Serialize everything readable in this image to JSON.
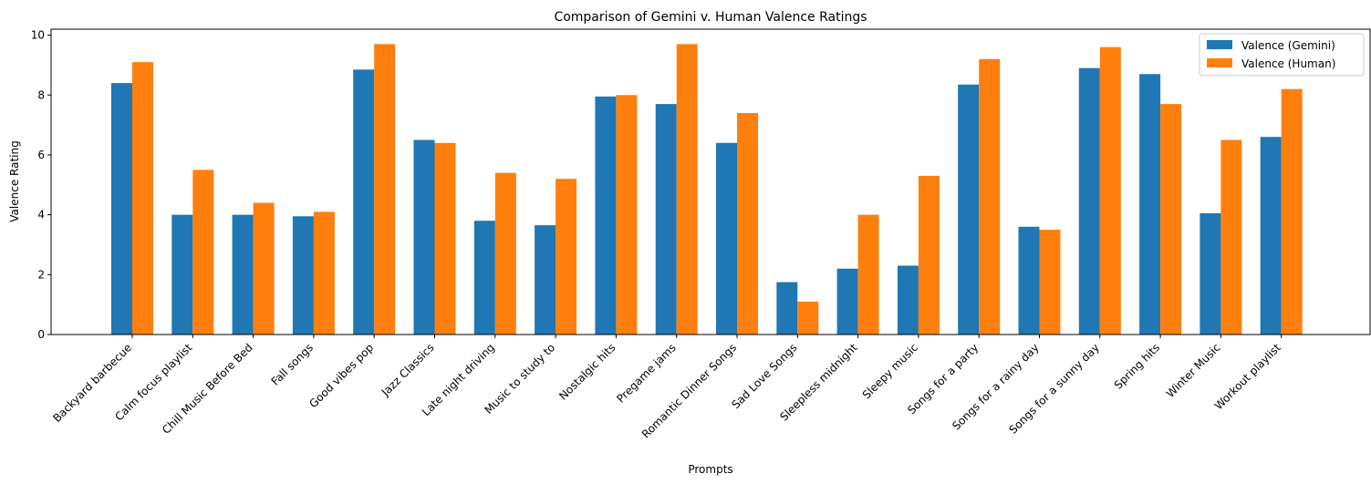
{
  "chart_data": {
    "type": "bar",
    "title": "Comparison of Gemini v. Human Valence Ratings",
    "xlabel": "Prompts",
    "ylabel": "Valence Rating",
    "ylim": [
      0,
      10.2
    ],
    "yticks": [
      0,
      2,
      4,
      6,
      8,
      10
    ],
    "grid": false,
    "legend_position": "top-right",
    "categories": [
      "Backyard barbecue",
      "Calm focus playlist",
      "Chill Music Before Bed",
      "Fall songs",
      "Good vibes pop",
      "Jazz Classics",
      "Late night driving",
      "Music to study to",
      "Nostalgic hits",
      "Pregame jams",
      "Romantic Dinner Songs",
      "Sad Love Songs",
      "Sleepless midnight",
      "Sleepy music",
      "Songs for a party",
      "Songs for a rainy day",
      "Songs for a sunny day",
      "Spring hits",
      "Winter Music",
      "Workout playlist"
    ],
    "series": [
      {
        "name": "Valence (Gemini)",
        "color": "#1f77b4",
        "values": [
          8.4,
          4.0,
          4.0,
          3.95,
          8.85,
          6.5,
          3.8,
          3.65,
          7.95,
          7.7,
          6.4,
          1.75,
          2.2,
          2.3,
          8.35,
          3.6,
          8.9,
          8.7,
          4.05,
          6.6
        ]
      },
      {
        "name": "Valence (Human)",
        "color": "#ff7f0e",
        "values": [
          9.1,
          5.5,
          4.4,
          4.1,
          9.7,
          6.4,
          5.4,
          5.2,
          8.0,
          9.7,
          7.4,
          1.1,
          4.0,
          5.3,
          9.2,
          3.5,
          9.6,
          7.7,
          6.5,
          8.2
        ]
      }
    ]
  }
}
